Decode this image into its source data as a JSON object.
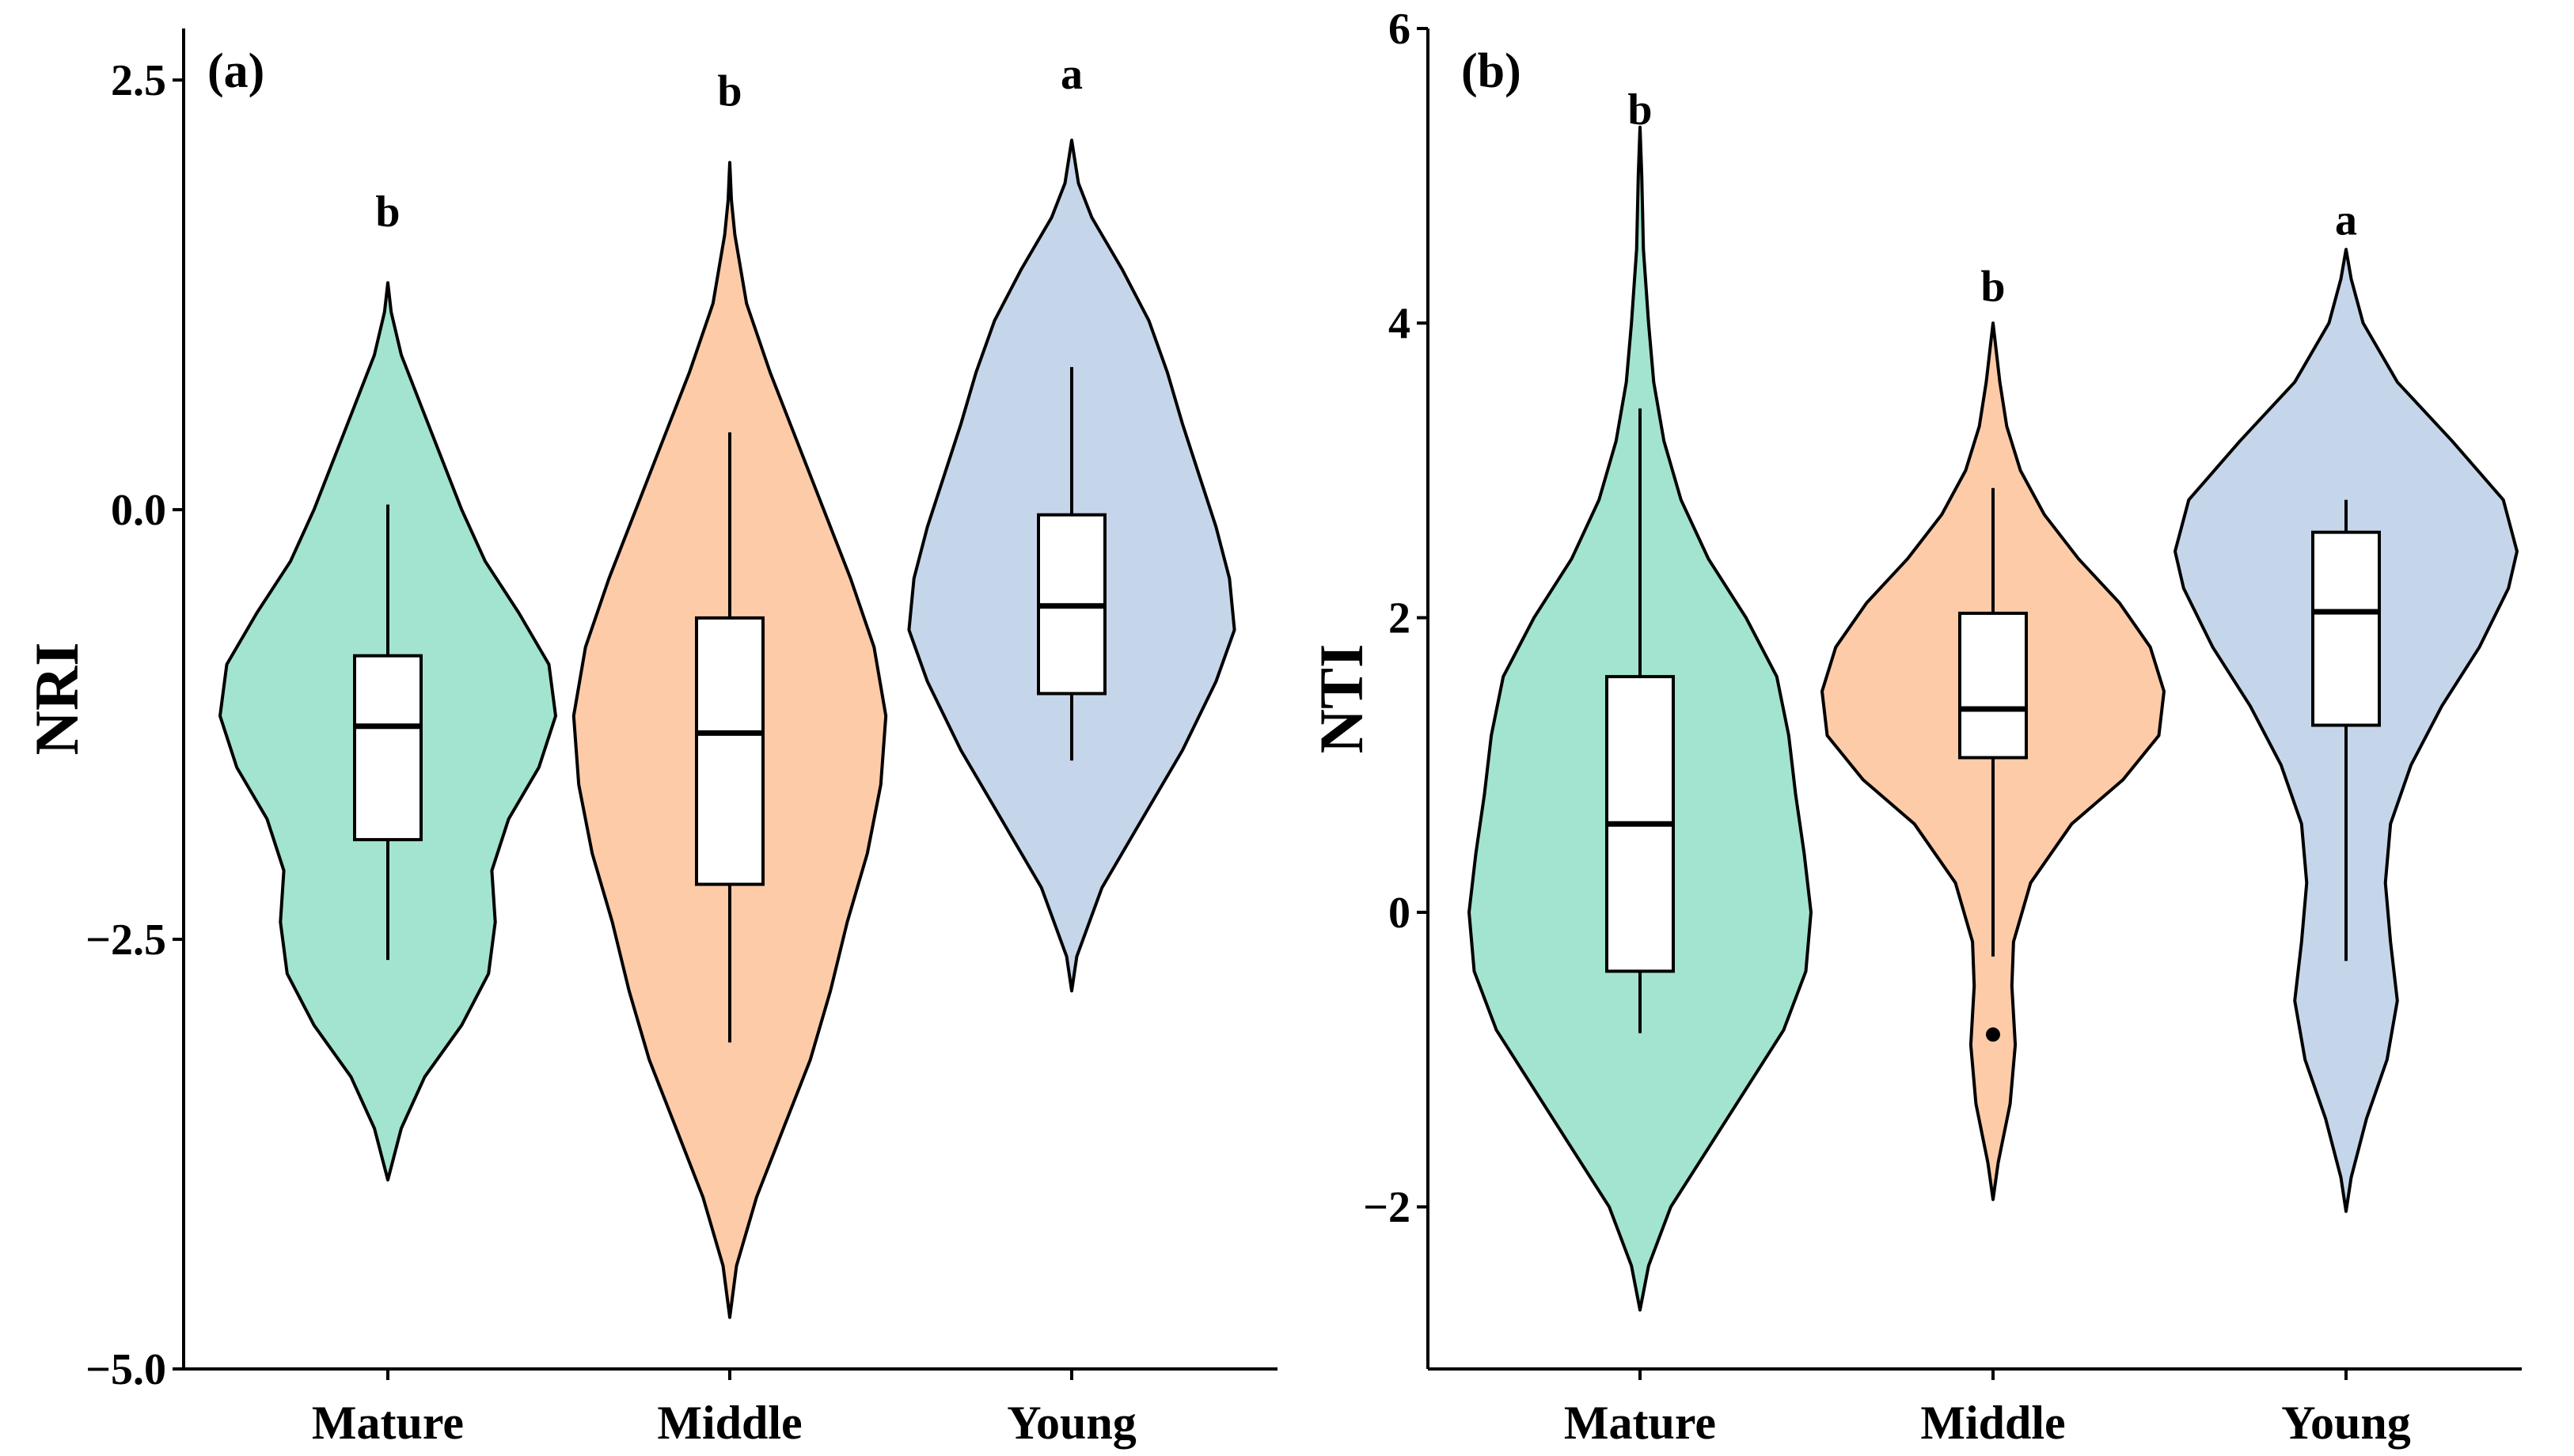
{
  "chart_data": [
    {
      "type": "violin",
      "panel": "(a)",
      "ylabel": "NRI",
      "xlabel": "",
      "categories": [
        "Mature",
        "Middle",
        "Young"
      ],
      "ylim": [
        -5.0,
        2.8
      ],
      "yticks": [
        -5.0,
        -2.5,
        0.0,
        2.5
      ],
      "ytick_labels": [
        "−5.0",
        "−2.5",
        "0.0",
        "2.5"
      ],
      "groups": [
        {
          "name": "Mature",
          "color": "#a2e4d0",
          "letter": "b",
          "letter_y": 1.65,
          "box": {
            "whisker_low": -2.62,
            "q1": -1.92,
            "median": -1.26,
            "q3": -0.85,
            "whisker_high": 0.03
          },
          "outliers": [],
          "density": [
            [
              -3.9,
              0
            ],
            [
              -3.6,
              0.08
            ],
            [
              -3.3,
              0.22
            ],
            [
              -3.0,
              0.44
            ],
            [
              -2.7,
              0.6
            ],
            [
              -2.4,
              0.64
            ],
            [
              -2.1,
              0.62
            ],
            [
              -1.8,
              0.72
            ],
            [
              -1.5,
              0.9
            ],
            [
              -1.2,
              1.0
            ],
            [
              -0.9,
              0.96
            ],
            [
              -0.6,
              0.78
            ],
            [
              -0.3,
              0.58
            ],
            [
              0.0,
              0.44
            ],
            [
              0.3,
              0.32
            ],
            [
              0.6,
              0.2
            ],
            [
              0.9,
              0.08
            ],
            [
              1.15,
              0.02
            ],
            [
              1.32,
              0
            ]
          ]
        },
        {
          "name": "Middle",
          "color": "#fdcba8",
          "letter": "b",
          "letter_y": 2.35,
          "box": {
            "whisker_low": -3.1,
            "q1": -2.18,
            "median": -1.3,
            "q3": -0.63,
            "whisker_high": 0.45
          },
          "outliers": [],
          "density": [
            [
              -4.7,
              0
            ],
            [
              -4.4,
              0.04
            ],
            [
              -4.0,
              0.16
            ],
            [
              -3.6,
              0.32
            ],
            [
              -3.2,
              0.48
            ],
            [
              -2.8,
              0.6
            ],
            [
              -2.4,
              0.7
            ],
            [
              -2.0,
              0.82
            ],
            [
              -1.6,
              0.9
            ],
            [
              -1.2,
              0.93
            ],
            [
              -0.8,
              0.86
            ],
            [
              -0.4,
              0.72
            ],
            [
              0.0,
              0.56
            ],
            [
              0.4,
              0.4
            ],
            [
              0.8,
              0.24
            ],
            [
              1.2,
              0.1
            ],
            [
              1.6,
              0.03
            ],
            [
              1.8,
              0.01
            ],
            [
              2.02,
              0
            ]
          ]
        },
        {
          "name": "Young",
          "color": "#c6d6ea",
          "letter": "a",
          "letter_y": 2.45,
          "box": {
            "whisker_low": -1.46,
            "q1": -1.07,
            "median": -0.56,
            "q3": -0.03,
            "whisker_high": 0.83
          },
          "outliers": [],
          "density": [
            [
              -2.8,
              0
            ],
            [
              -2.6,
              0.03
            ],
            [
              -2.2,
              0.18
            ],
            [
              -1.8,
              0.42
            ],
            [
              -1.4,
              0.66
            ],
            [
              -1.0,
              0.86
            ],
            [
              -0.7,
              0.97
            ],
            [
              -0.4,
              0.94
            ],
            [
              -0.1,
              0.86
            ],
            [
              0.2,
              0.76
            ],
            [
              0.5,
              0.66
            ],
            [
              0.8,
              0.57
            ],
            [
              1.1,
              0.46
            ],
            [
              1.4,
              0.3
            ],
            [
              1.7,
              0.12
            ],
            [
              1.9,
              0.04
            ],
            [
              2.15,
              0
            ]
          ]
        }
      ]
    },
    {
      "type": "violin",
      "panel": "(b)",
      "ylabel": "NTI",
      "xlabel": "",
      "categories": [
        "Mature",
        "Middle",
        "Young"
      ],
      "ylim": [
        -3.1,
        6.0
      ],
      "yticks": [
        -2,
        0,
        2,
        4,
        6
      ],
      "ytick_labels": [
        "−2",
        "0",
        "2",
        "4",
        "6"
      ],
      "groups": [
        {
          "name": "Mature",
          "color": "#a2e4d0",
          "letter": "b",
          "letter_y": 5.35,
          "box": {
            "whisker_low": -0.82,
            "q1": -0.4,
            "median": 0.6,
            "q3": 1.6,
            "whisker_high": 3.42
          },
          "outliers": [],
          "density": [
            [
              -2.7,
              0
            ],
            [
              -2.4,
              0.05
            ],
            [
              -2.0,
              0.18
            ],
            [
              -1.6,
              0.4
            ],
            [
              -1.2,
              0.62
            ],
            [
              -0.8,
              0.84
            ],
            [
              -0.4,
              0.97
            ],
            [
              0.0,
              1.0
            ],
            [
              0.4,
              0.96
            ],
            [
              0.8,
              0.91
            ],
            [
              1.2,
              0.87
            ],
            [
              1.6,
              0.8
            ],
            [
              2.0,
              0.62
            ],
            [
              2.4,
              0.4
            ],
            [
              2.8,
              0.24
            ],
            [
              3.2,
              0.14
            ],
            [
              3.6,
              0.08
            ],
            [
              4.0,
              0.05
            ],
            [
              4.5,
              0.02
            ],
            [
              5.0,
              0.01
            ],
            [
              5.33,
              0
            ]
          ]
        },
        {
          "name": "Middle",
          "color": "#fdcba8",
          "letter": "b",
          "letter_y": 4.15,
          "box": {
            "whisker_low": -0.3,
            "q1": 1.05,
            "median": 1.38,
            "q3": 2.03,
            "whisker_high": 2.88
          },
          "outliers": [
            -0.83
          ],
          "density": [
            [
              -1.95,
              0
            ],
            [
              -1.7,
              0.03
            ],
            [
              -1.3,
              0.1
            ],
            [
              -0.9,
              0.13
            ],
            [
              -0.5,
              0.11
            ],
            [
              -0.2,
              0.12
            ],
            [
              0.2,
              0.22
            ],
            [
              0.6,
              0.46
            ],
            [
              0.9,
              0.76
            ],
            [
              1.2,
              0.97
            ],
            [
              1.5,
              1.0
            ],
            [
              1.8,
              0.92
            ],
            [
              2.1,
              0.74
            ],
            [
              2.4,
              0.5
            ],
            [
              2.7,
              0.3
            ],
            [
              3.0,
              0.16
            ],
            [
              3.3,
              0.08
            ],
            [
              3.6,
              0.04
            ],
            [
              4.0,
              0
            ]
          ]
        },
        {
          "name": "Young",
          "color": "#c6d6ea",
          "letter": "a",
          "letter_y": 4.6,
          "box": {
            "whisker_low": -0.33,
            "q1": 1.27,
            "median": 2.04,
            "q3": 2.58,
            "whisker_high": 2.8
          },
          "outliers": [],
          "density": [
            [
              -2.03,
              0
            ],
            [
              -1.8,
              0.03
            ],
            [
              -1.4,
              0.12
            ],
            [
              -1.0,
              0.24
            ],
            [
              -0.6,
              0.3
            ],
            [
              -0.2,
              0.26
            ],
            [
              0.2,
              0.23
            ],
            [
              0.6,
              0.26
            ],
            [
              1.0,
              0.38
            ],
            [
              1.4,
              0.56
            ],
            [
              1.8,
              0.78
            ],
            [
              2.2,
              0.95
            ],
            [
              2.45,
              1.0
            ],
            [
              2.8,
              0.92
            ],
            [
              3.2,
              0.62
            ],
            [
              3.6,
              0.3
            ],
            [
              4.0,
              0.1
            ],
            [
              4.3,
              0.03
            ],
            [
              4.5,
              0
            ]
          ]
        }
      ]
    }
  ]
}
